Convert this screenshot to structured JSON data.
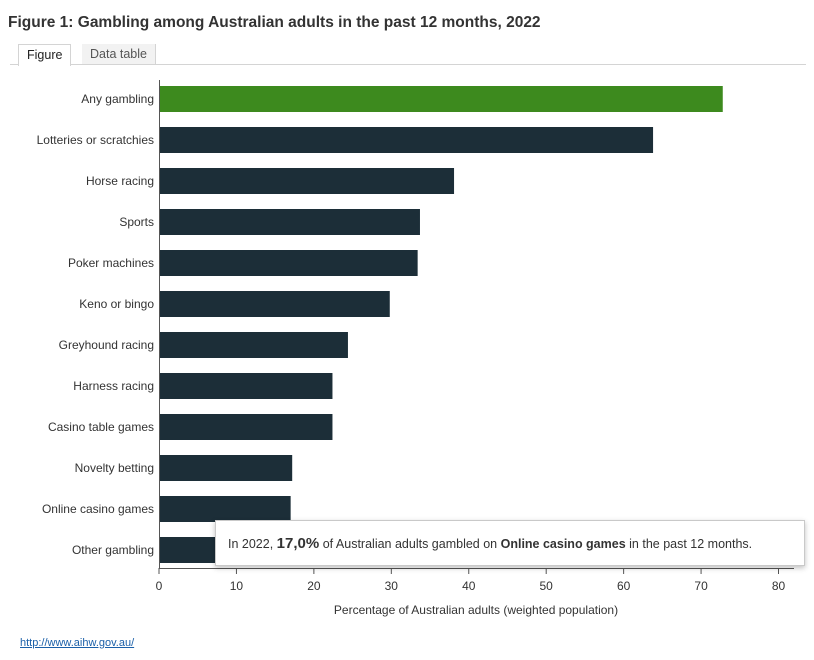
{
  "title": "Figure 1: Gambling among Australian adults in the past 12 months, 2022",
  "tabs": {
    "figure": "Figure",
    "data_table": "Data table"
  },
  "colors": {
    "highlight": "#3d8a1e",
    "bar": "#1c2e38",
    "axis": "#555555",
    "text": "#333333"
  },
  "chart_data": {
    "type": "bar",
    "orientation": "horizontal",
    "categories": [
      "Any gambling",
      "Lotteries or scratchies",
      "Horse racing",
      "Sports",
      "Poker machines",
      "Keno or bingo",
      "Greyhound racing",
      "Harness racing",
      "Casino table games",
      "Novelty betting",
      "Online casino games",
      "Other gambling"
    ],
    "values": [
      72.8,
      63.8,
      38.1,
      33.7,
      33.4,
      29.8,
      24.4,
      22.4,
      22.4,
      17.2,
      17.0,
      7.3
    ],
    "highlight_index": 0,
    "xlabel": "Percentage of Australian adults (weighted population)",
    "xlim": [
      0,
      82
    ],
    "xticks": [
      0,
      10,
      20,
      30,
      40,
      50,
      60,
      70,
      80
    ]
  },
  "tooltip": {
    "prefix": "In 2022,",
    "value": "17,0%",
    "middle": "of Australian adults gambled on",
    "category": "Online casino games",
    "suffix": "in the past 12 months."
  },
  "footer_link": "http://www.aihw.gov.au/"
}
